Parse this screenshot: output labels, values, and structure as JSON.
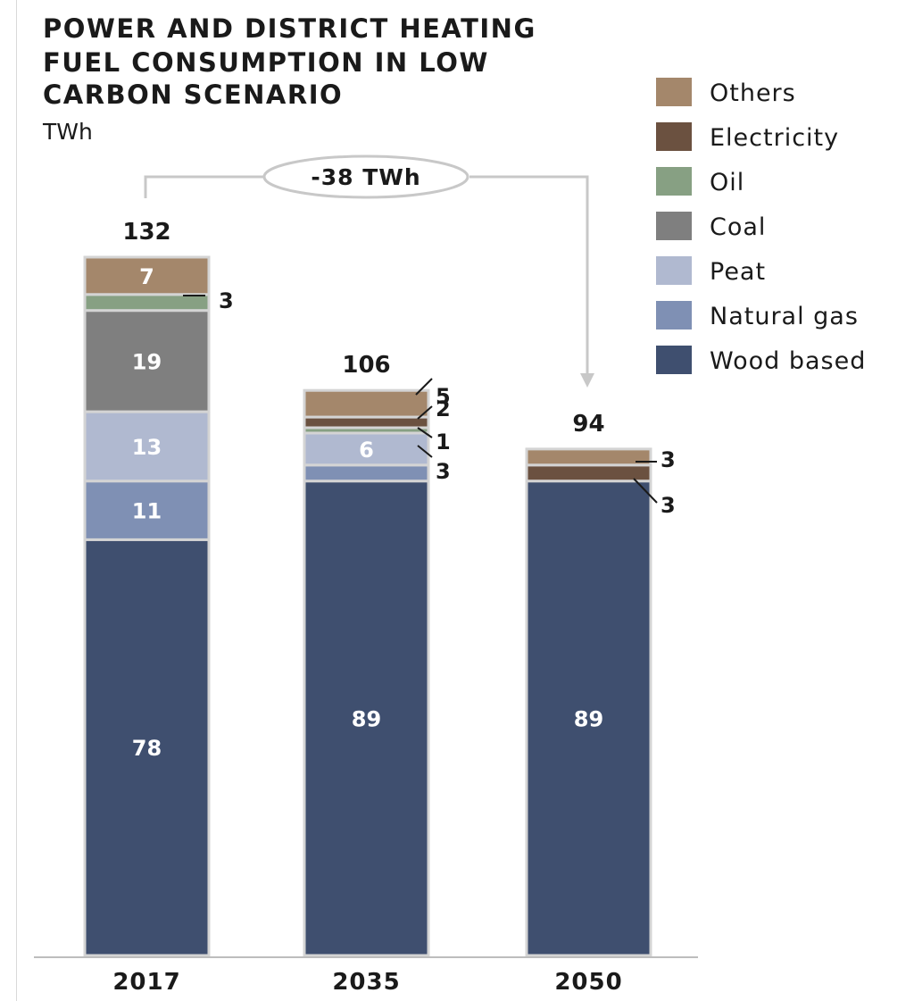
{
  "chart_data": {
    "type": "bar",
    "stacked": true,
    "title_lines": [
      "POWER AND DISTRICT HEATING",
      "FUEL CONSUMPTION IN LOW",
      "CARBON SCENARIO"
    ],
    "unit": "TWh",
    "categories": [
      "2017",
      "2035",
      "2050"
    ],
    "totals": [
      "132",
      "106",
      "94"
    ],
    "difference_label": "-38 TWh",
    "series": [
      {
        "name": "Wood based",
        "color": "#3f4f6f",
        "values": [
          78,
          89,
          89
        ],
        "labels": [
          "78",
          "89",
          "89"
        ]
      },
      {
        "name": "Natural gas",
        "color": "#7f90b4",
        "values": [
          11,
          3,
          0
        ],
        "labels": [
          "11",
          "3",
          ""
        ]
      },
      {
        "name": "Peat",
        "color": "#b0b9d0",
        "values": [
          13,
          6,
          0
        ],
        "labels": [
          "13",
          "6",
          ""
        ]
      },
      {
        "name": "Coal",
        "color": "#7f7f7f",
        "values": [
          19,
          0,
          0
        ],
        "labels": [
          "19",
          "",
          ""
        ]
      },
      {
        "name": "Oil",
        "color": "#87a083",
        "values": [
          3,
          1,
          0
        ],
        "labels": [
          "3",
          "1",
          ""
        ]
      },
      {
        "name": "Electricity",
        "color": "#6b5140",
        "values": [
          0,
          2,
          3
        ],
        "labels": [
          "",
          "2",
          "3"
        ]
      },
      {
        "name": "Others",
        "color": "#a4876b",
        "values": [
          7,
          5,
          3
        ],
        "labels": [
          "7",
          "5",
          "3"
        ]
      }
    ],
    "legend_order": [
      "Others",
      "Electricity",
      "Oil",
      "Coal",
      "Peat",
      "Natural gas",
      "Wood based"
    ],
    "legend_position": "right",
    "ylim": [
      0,
      132
    ],
    "grid": false
  }
}
